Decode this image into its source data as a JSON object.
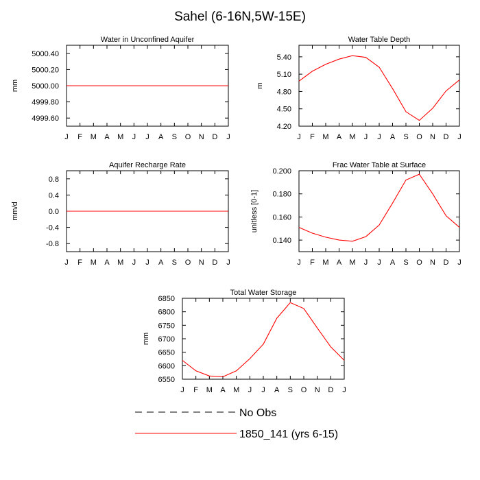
{
  "figure": {
    "title": "Sahel (6-16N,5W-15E)",
    "colors": {
      "obs": "#000000",
      "model": "#ff0000",
      "axis": "#000000",
      "background": "#ffffff"
    }
  },
  "legend": {
    "entries": [
      {
        "label": "No Obs",
        "style": "dashed",
        "color": "#000000"
      },
      {
        "label": "1850_141 (yrs 6-15)",
        "style": "solid",
        "color": "#ff0000"
      }
    ]
  },
  "chart_data": [
    {
      "type": "line",
      "title": "Water in Unconfined Aquifer",
      "xlabel": "",
      "ylabel": "mm",
      "categories": [
        "J",
        "F",
        "M",
        "A",
        "M",
        "J",
        "J",
        "A",
        "S",
        "O",
        "N",
        "D",
        "J"
      ],
      "ylim": [
        4999.5,
        5000.5
      ],
      "yticks": [
        4999.6,
        4999.8,
        5000.0,
        5000.2,
        5000.4
      ],
      "ytick_labels": [
        "4999.60",
        "4999.80",
        "5000.00",
        "5000.20",
        "5000.40"
      ],
      "series": [
        {
          "name": "1850_141 (yrs 6-15)",
          "values": [
            5000,
            5000,
            5000,
            5000,
            5000,
            5000,
            5000,
            5000,
            5000,
            5000,
            5000,
            5000,
            5000
          ]
        }
      ]
    },
    {
      "type": "line",
      "title": "Water Table Depth",
      "xlabel": "",
      "ylabel": "m",
      "categories": [
        "J",
        "F",
        "M",
        "A",
        "M",
        "J",
        "J",
        "A",
        "S",
        "O",
        "N",
        "D",
        "J"
      ],
      "ylim": [
        4.2,
        5.6
      ],
      "yticks": [
        4.2,
        4.5,
        4.8,
        5.1,
        5.4
      ],
      "ytick_labels": [
        "4.20",
        "4.50",
        "4.80",
        "5.10",
        "5.40"
      ],
      "series": [
        {
          "name": "1850_141 (yrs 6-15)",
          "values": [
            4.98,
            5.15,
            5.27,
            5.36,
            5.42,
            5.39,
            5.22,
            4.85,
            4.45,
            4.3,
            4.51,
            4.81,
            5.0
          ]
        }
      ]
    },
    {
      "type": "line",
      "title": "Aquifer Recharge Rate",
      "xlabel": "",
      "ylabel": "mm/d",
      "categories": [
        "J",
        "F",
        "M",
        "A",
        "M",
        "J",
        "J",
        "A",
        "S",
        "O",
        "N",
        "D",
        "J"
      ],
      "ylim": [
        -1.0,
        1.0
      ],
      "yticks": [
        -0.8,
        -0.4,
        0.0,
        0.4,
        0.8
      ],
      "ytick_labels": [
        "-0.8",
        "-0.4",
        "0.0",
        "0.4",
        "0.8"
      ],
      "series": [
        {
          "name": "1850_141 (yrs 6-15)",
          "values": [
            0,
            0,
            0,
            0,
            0,
            0,
            0,
            0,
            0,
            0,
            0,
            0,
            0
          ]
        }
      ]
    },
    {
      "type": "line",
      "title": "Frac Water Table at Surface",
      "xlabel": "",
      "ylabel": "unitless [0-1]",
      "categories": [
        "J",
        "F",
        "M",
        "A",
        "M",
        "J",
        "J",
        "A",
        "S",
        "O",
        "N",
        "D",
        "J"
      ],
      "ylim": [
        0.13,
        0.2
      ],
      "yticks": [
        0.14,
        0.16,
        0.18,
        0.2
      ],
      "ytick_labels": [
        "0.140",
        "0.160",
        "0.180",
        "0.200"
      ],
      "series": [
        {
          "name": "1850_141 (yrs 6-15)",
          "values": [
            0.151,
            0.146,
            0.1425,
            0.14,
            0.139,
            0.143,
            0.153,
            0.172,
            0.192,
            0.197,
            0.18,
            0.161,
            0.151
          ]
        }
      ]
    },
    {
      "type": "line",
      "title": "Total Water Storage",
      "xlabel": "",
      "ylabel": "mm",
      "categories": [
        "J",
        "F",
        "M",
        "A",
        "M",
        "J",
        "J",
        "A",
        "S",
        "O",
        "N",
        "D",
        "J"
      ],
      "ylim": [
        6550,
        6850
      ],
      "yticks": [
        6550,
        6600,
        6650,
        6700,
        6750,
        6800,
        6850
      ],
      "ytick_labels": [
        "6550",
        "6600",
        "6650",
        "6700",
        "6750",
        "6800",
        "6850"
      ],
      "series": [
        {
          "name": "1850_141 (yrs 6-15)",
          "values": [
            6620,
            6581,
            6562,
            6559,
            6581,
            6626,
            6680,
            6776,
            6834,
            6812,
            6740,
            6670,
            6620
          ]
        }
      ]
    }
  ]
}
